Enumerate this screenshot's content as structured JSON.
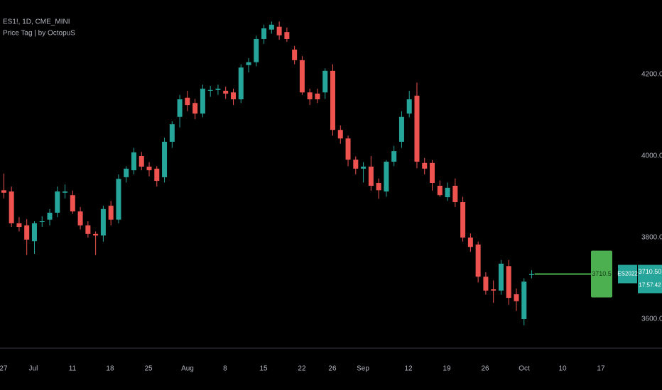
{
  "chart_data": {
    "type": "candlestick",
    "title": "ES1!, 1D, CME_MINI",
    "subtitle": "Price Tag | by OctopuS",
    "up_color": "#26a69a",
    "down_color": "#ef5350",
    "x": [
      0.5,
      1.5,
      2.5,
      3.5,
      4.5,
      5.5,
      6.5,
      7.5,
      8.5,
      9.5,
      10.5,
      11.5,
      12.5,
      13.5,
      14.5,
      15.5,
      16.5,
      17.5,
      18.5,
      19.5,
      20.5,
      21.5,
      22.5,
      23.5,
      24.5,
      25.5,
      26.5,
      27.5,
      28.5,
      29.5,
      30.5,
      31.5,
      32.5,
      33.5,
      34.5,
      35.5,
      36.5,
      37.5,
      38.5,
      39.5,
      40.5,
      41.5,
      42.5,
      43.5,
      44.5,
      45.5,
      46.5,
      47.5,
      48.5,
      49.5,
      50.5,
      51.5,
      52.5,
      53.5,
      54.5,
      55.5,
      56.5,
      57.5,
      58.5,
      59.5,
      60.5,
      61.5,
      62.5,
      63.5,
      64.5,
      65.5,
      66.5,
      67.5,
      68.5,
      69.5
    ],
    "series": [
      {
        "open": [
          3916,
          3913,
          3835,
          3830,
          3791,
          3840,
          3844,
          3861,
          3910,
          3904,
          3864,
          3830,
          3809,
          3805,
          3878,
          3844,
          3948,
          3965,
          4000,
          3974,
          3969,
          3948,
          4035,
          4096,
          4143,
          4130,
          4104,
          4160,
          4162,
          4160,
          4156,
          4139,
          4223,
          4230,
          4287,
          4310,
          4317,
          4304,
          4261,
          4235,
          4156,
          4153,
          4156,
          4209,
          4064,
          4043,
          3991,
          3969,
          3974,
          3934,
          3913,
          3986,
          4035,
          4104,
          4148,
          3983,
          3983,
          3927,
          3899,
          3927,
          3887,
          3800,
          3783,
          3704,
          3673,
          3670,
          3730,
          3661,
          3600,
          3708
        ],
        "high": [
          3957,
          3925,
          3850,
          3845,
          3840,
          3852,
          3870,
          3925,
          3930,
          3915,
          3875,
          3840,
          3815,
          3878,
          3890,
          3955,
          3975,
          4020,
          4010,
          3985,
          3975,
          4045,
          4085,
          4150,
          4160,
          4140,
          4175,
          4172,
          4175,
          4170,
          4165,
          4225,
          4240,
          4295,
          4322,
          4330,
          4330,
          4315,
          4270,
          4245,
          4165,
          4165,
          4215,
          4225,
          4075,
          4050,
          3999,
          3985,
          4000,
          3945,
          3990,
          4025,
          4110,
          4160,
          4180,
          3995,
          3990,
          3940,
          3935,
          3945,
          3900,
          3810,
          3790,
          3715,
          3695,
          3745,
          3745,
          3675,
          3700,
          3720
        ],
        "low": [
          3896,
          3826,
          3815,
          3757,
          3760,
          3826,
          3830,
          3850,
          3896,
          3858,
          3820,
          3800,
          3757,
          3790,
          3830,
          3835,
          3935,
          3955,
          3965,
          3950,
          3925,
          3935,
          4020,
          4070,
          4110,
          4090,
          4095,
          4145,
          4150,
          4140,
          4125,
          4130,
          4205,
          4220,
          4275,
          4300,
          4285,
          4280,
          4225,
          4150,
          4125,
          4130,
          4140,
          4050,
          4030,
          3975,
          3955,
          3935,
          3915,
          3895,
          3900,
          3975,
          4020,
          4095,
          3970,
          3955,
          3915,
          3900,
          3890,
          3875,
          3790,
          3765,
          3690,
          3660,
          3640,
          3660,
          3635,
          3620,
          3585,
          3700
        ],
        "close": [
          3910,
          3835,
          3826,
          3795,
          3835,
          3840,
          3861,
          3913,
          3913,
          3864,
          3830,
          3809,
          3805,
          3870,
          3844,
          3944,
          3969,
          4009,
          3974,
          3965,
          3939,
          4035,
          4078,
          4139,
          4125,
          4104,
          4165,
          4162,
          4165,
          4153,
          4139,
          4217,
          4230,
          4287,
          4313,
          4322,
          4296,
          4287,
          4235,
          4156,
          4139,
          4139,
          4209,
          4064,
          4043,
          3991,
          3969,
          3974,
          3927,
          3916,
          3986,
          4012,
          4096,
          4139,
          3986,
          3969,
          3934,
          3904,
          3922,
          3887,
          3800,
          3777,
          3704,
          3670,
          3670,
          3736,
          3652,
          3644,
          3692,
          3710.5
        ]
      }
    ],
    "xlim": [
      0,
      83.1
    ],
    "xticks": [
      {
        "value": 0.46,
        "label": "27"
      },
      {
        "value": 4.36,
        "label": "Jul"
      },
      {
        "value": 9.47,
        "label": "11"
      },
      {
        "value": 14.39,
        "label": "18"
      },
      {
        "value": 19.41,
        "label": "25"
      },
      {
        "value": 24.51,
        "label": "Aug"
      },
      {
        "value": 29.43,
        "label": "8"
      },
      {
        "value": 34.45,
        "label": "15"
      },
      {
        "value": 39.46,
        "label": "22"
      },
      {
        "value": 43.45,
        "label": "26"
      },
      {
        "value": 47.45,
        "label": "Sep"
      },
      {
        "value": 53.39,
        "label": "12"
      },
      {
        "value": 58.4,
        "label": "19"
      },
      {
        "value": 63.42,
        "label": "26"
      },
      {
        "value": 68.52,
        "label": "Oct"
      },
      {
        "value": 73.54,
        "label": "10"
      },
      {
        "value": 78.55,
        "label": "17"
      }
    ],
    "ylim": [
      3530.5,
      4382.6
    ],
    "yticks": [
      {
        "value": 3600,
        "label": "3600.00"
      },
      {
        "value": 3800,
        "label": "3800.00"
      },
      {
        "value": 4000,
        "label": "4000.00"
      },
      {
        "value": 4200,
        "label": "4200.00"
      }
    ],
    "price_tag": 3710.5,
    "tag_color": "#4caf50",
    "symbol_label": "ES2022",
    "last_price_label": "3710.50",
    "countdown": "17:57:42"
  }
}
